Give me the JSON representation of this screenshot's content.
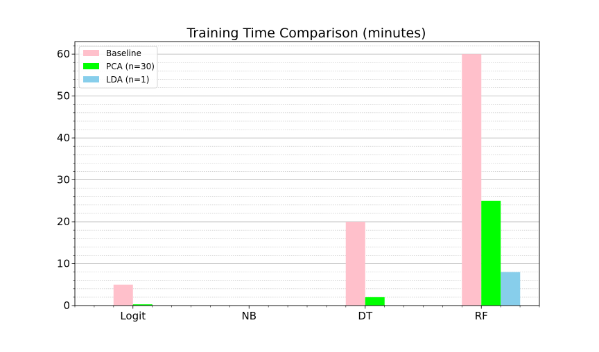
{
  "chart_data": {
    "type": "bar",
    "title": "Training Time Comparison (minutes)",
    "xlabel": "",
    "ylabel": "",
    "categories": [
      "Logit",
      "NB",
      "DT",
      "RF"
    ],
    "series": [
      {
        "name": "Baseline",
        "values": [
          5,
          0,
          20,
          60
        ],
        "color": "#ffc0cb"
      },
      {
        "name": "PCA (n=30)",
        "values": [
          0.3,
          0,
          2,
          25
        ],
        "color": "#00ff00"
      },
      {
        "name": "LDA (n=1)",
        "values": [
          0,
          0,
          0,
          8
        ],
        "color": "#87ceeb"
      }
    ],
    "ylim": [
      0,
      63
    ],
    "yticks": [
      0,
      10,
      20,
      30,
      40,
      50,
      60
    ],
    "grid": {
      "major": true,
      "minor": true
    },
    "legend_position": "upper-left"
  }
}
